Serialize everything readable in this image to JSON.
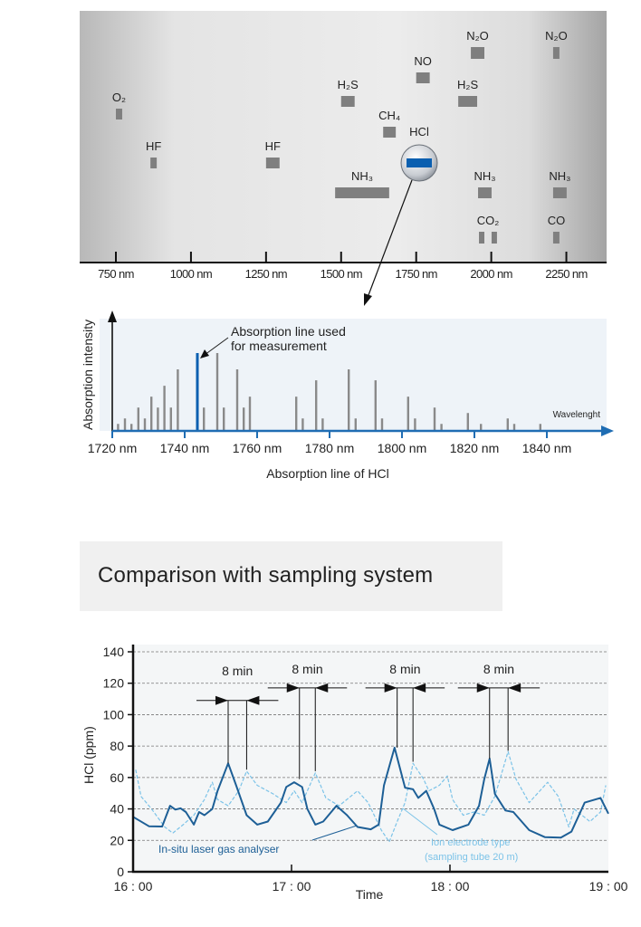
{
  "chart_data": [
    {
      "type": "range-bars",
      "xlabel": "",
      "x_unit": "nm",
      "xlim": [
        630,
        2390
      ],
      "x_ticks": [
        "750 nm",
        "1000 nm",
        "1250 nm",
        "1500 nm",
        "1750 nm",
        "2000 nm",
        "2250 nm"
      ],
      "x_tick_values": [
        750,
        1000,
        1250,
        1500,
        1750,
        2000,
        2250
      ],
      "grid": false,
      "species": [
        {
          "label": "O₂",
          "ranges": [
            [
              750,
              771
            ]
          ]
        },
        {
          "label": "HF",
          "ranges": [
            [
              865,
              886
            ]
          ]
        },
        {
          "label": "HF",
          "ranges": [
            [
              1250,
              1295
            ]
          ]
        },
        {
          "label": "H₂S",
          "ranges": [
            [
              1500,
              1545
            ]
          ]
        },
        {
          "label": "NO",
          "ranges": [
            [
              1750,
              1795
            ]
          ]
        },
        {
          "label": "N₂O",
          "ranges": [
            [
              1932,
              1977
            ]
          ]
        },
        {
          "label": "N₂O",
          "ranges": [
            [
              2206,
              2227
            ]
          ]
        },
        {
          "label": "H₂S",
          "ranges": [
            [
              1890,
              1953
            ]
          ]
        },
        {
          "label": "CH₄",
          "ranges": [
            [
              1640,
              1682
            ]
          ]
        },
        {
          "label": "HCl",
          "ranges": [
            [
              1740,
              1780
            ]
          ],
          "highlight": true
        },
        {
          "label": "NH₃",
          "ranges": [
            [
              1480,
              1660
            ]
          ]
        },
        {
          "label": "NH₃",
          "ranges": [
            [
              1956,
              2001
            ]
          ]
        },
        {
          "label": "NH₃",
          "ranges": [
            [
              2206,
              2251
            ]
          ]
        },
        {
          "label": "CO₂",
          "ranges": [
            [
              1959,
              1977
            ],
            [
              2001,
              2019
            ]
          ]
        },
        {
          "label": "CO",
          "ranges": [
            [
              2206,
              2227
            ]
          ]
        }
      ],
      "colors": {
        "bar": "#7f7f7f",
        "highlight": "#0a5fb0"
      }
    },
    {
      "type": "bar",
      "title": "Absorption line of HCl",
      "xlabel": "Wavelenght",
      "ylabel": "Absorption intensity",
      "xlim": [
        1720,
        1856
      ],
      "x_ticks": [
        "1720 nm",
        "1740 nm",
        "1760 nm",
        "1780 nm",
        "1800 nm",
        "1820 nm",
        "1840 nm"
      ],
      "x_tick_values": [
        1720,
        1740,
        1760,
        1780,
        1800,
        1820,
        1840
      ],
      "annotation": [
        "Absorption line used",
        "for measurement"
      ],
      "highlight_line_nm": 1743.5,
      "lines": [
        [
          1721.6,
          0.09
        ],
        [
          1723.5,
          0.16
        ],
        [
          1725.3,
          0.09
        ],
        [
          1727.2,
          0.3
        ],
        [
          1729.0,
          0.16
        ],
        [
          1730.8,
          0.44
        ],
        [
          1732.6,
          0.3
        ],
        [
          1734.4,
          0.58
        ],
        [
          1736.2,
          0.3
        ],
        [
          1738.1,
          0.79
        ],
        [
          1743.5,
          1.0
        ],
        [
          1745.3,
          0.3
        ],
        [
          1749.0,
          1.0
        ],
        [
          1750.8,
          0.3
        ],
        [
          1754.5,
          0.79
        ],
        [
          1756.3,
          0.3
        ],
        [
          1758.0,
          0.44
        ],
        [
          1770.8,
          0.44
        ],
        [
          1772.6,
          0.16
        ],
        [
          1776.3,
          0.65
        ],
        [
          1778.1,
          0.16
        ],
        [
          1785.3,
          0.79
        ],
        [
          1787.2,
          0.16
        ],
        [
          1792.7,
          0.65
        ],
        [
          1794.5,
          0.16
        ],
        [
          1801.7,
          0.44
        ],
        [
          1803.6,
          0.16
        ],
        [
          1809.0,
          0.3
        ],
        [
          1810.9,
          0.09
        ],
        [
          1818.2,
          0.23
        ],
        [
          1821.8,
          0.09
        ],
        [
          1829.2,
          0.16
        ],
        [
          1831.0,
          0.09
        ],
        [
          1838.2,
          0.09
        ]
      ],
      "colors": {
        "line": "#8a8a8a",
        "highlight": "#0a5fb0",
        "axis": "#1f6db3",
        "background": "#eef3f8"
      }
    },
    {
      "type": "line",
      "title": "Comparison with sampling system",
      "xlabel": "Time",
      "ylabel": "HCl (ppm)",
      "ylim": [
        0,
        140
      ],
      "y_ticks": [
        0,
        20,
        40,
        60,
        80,
        100,
        120,
        140
      ],
      "xlim": [
        "16:00",
        "19:00"
      ],
      "x_ticks": [
        "16 : 00",
        "17 : 00",
        "18 : 00",
        "19 : 00"
      ],
      "grid": "horizontal dashed",
      "series": [
        {
          "name": "In-situ laser gas analyser",
          "color": "#1d5f96",
          "style": "solid",
          "points": [
            [
              "16:00",
              35
            ],
            [
              "16:06",
              29
            ],
            [
              "16:11",
              28.8
            ],
            [
              "16:14",
              42
            ],
            [
              "16:16",
              39.6
            ],
            [
              "16:18",
              40.4
            ],
            [
              "16:20",
              38
            ],
            [
              "16:23",
              30
            ],
            [
              "16:25",
              38
            ],
            [
              "16:27",
              36
            ],
            [
              "16:30",
              40
            ],
            [
              "16:32",
              51.5
            ],
            [
              "16:36",
              69
            ],
            [
              "16:39",
              55
            ],
            [
              "16:43",
              36
            ],
            [
              "16:47",
              30
            ],
            [
              "16:51",
              32
            ],
            [
              "16:56",
              44
            ],
            [
              "16:58",
              54
            ],
            [
              "17:01",
              57
            ],
            [
              "17:04",
              54
            ],
            [
              "17:06",
              40
            ],
            [
              "17:09",
              30
            ],
            [
              "17:12",
              32
            ],
            [
              "17:17",
              42
            ],
            [
              "17:21",
              36
            ],
            [
              "17:25",
              28.5
            ],
            [
              "17:30",
              27
            ],
            [
              "17:33",
              30
            ],
            [
              "17:35",
              55
            ],
            [
              "17:39",
              79
            ],
            [
              "17:43",
              53.5
            ],
            [
              "17:46",
              52.5
            ],
            [
              "17:48",
              47
            ],
            [
              "17:51",
              51.5
            ],
            [
              "17:54",
              40
            ],
            [
              "17:56",
              30
            ],
            [
              "18:01",
              26.5
            ],
            [
              "18:07",
              30
            ],
            [
              "18:11",
              42
            ],
            [
              "18:13",
              59
            ],
            [
              "18:15",
              72
            ],
            [
              "18:17",
              49.6
            ],
            [
              "18:21",
              39
            ],
            [
              "18:24",
              38
            ],
            [
              "18:30",
              26.5
            ],
            [
              "18:36",
              22
            ],
            [
              "18:42",
              21.7
            ],
            [
              "18:46",
              25.6
            ],
            [
              "18:51",
              44
            ],
            [
              "18:57",
              47
            ],
            [
              "19:00",
              37
            ]
          ]
        },
        {
          "name": "Ion electrode type (sampling tube 20 m)",
          "name_lines": [
            "Ion electrode type",
            "(sampling tube 20 m)"
          ],
          "color": "#7cc3e8",
          "style": "dashed",
          "points": [
            [
              "16:01",
              65
            ],
            [
              "16:03",
              48
            ],
            [
              "16:07",
              40
            ],
            [
              "16:12",
              28.5
            ],
            [
              "16:15",
              24.6
            ],
            [
              "16:19",
              30
            ],
            [
              "16:23",
              36
            ],
            [
              "16:27",
              46
            ],
            [
              "16:30",
              57
            ],
            [
              "16:32",
              46
            ],
            [
              "16:36",
              42
            ],
            [
              "16:40",
              51.5
            ],
            [
              "16:43",
              64
            ],
            [
              "16:47",
              55
            ],
            [
              "16:53",
              49.6
            ],
            [
              "16:58",
              44
            ],
            [
              "17:01",
              51.5
            ],
            [
              "17:04",
              44
            ],
            [
              "17:09",
              63
            ],
            [
              "17:13",
              47
            ],
            [
              "17:18",
              42
            ],
            [
              "17:25",
              51.5
            ],
            [
              "17:29",
              44
            ],
            [
              "17:34",
              26.5
            ],
            [
              "17:37",
              19
            ],
            [
              "17:40",
              32
            ],
            [
              "17:43",
              44
            ],
            [
              "17:46",
              69
            ],
            [
              "17:50",
              59
            ],
            [
              "17:52",
              51.5
            ],
            [
              "17:56",
              55
            ],
            [
              "17:59",
              61
            ],
            [
              "18:01",
              46
            ],
            [
              "18:05",
              36
            ],
            [
              "18:09",
              38
            ],
            [
              "18:13",
              36
            ],
            [
              "18:17",
              48
            ],
            [
              "18:22",
              76.5
            ],
            [
              "18:25",
              59
            ],
            [
              "18:30",
              44
            ],
            [
              "18:37",
              57
            ],
            [
              "18:41",
              48
            ],
            [
              "18:45",
              28.5
            ],
            [
              "18:47",
              40
            ],
            [
              "18:53",
              32
            ],
            [
              "18:57",
              38
            ],
            [
              "18:59",
              55
            ]
          ]
        }
      ],
      "annotations": [
        {
          "label": "8 min",
          "from": "16:36",
          "to": "16:43",
          "from_ppm": 69,
          "to_ppm": 65,
          "arrow_ppm": 109
        },
        {
          "label": "8 min",
          "from": "17:03",
          "to": "17:09",
          "from_ppm": 59,
          "to_ppm": 64,
          "arrow_ppm": 117
        },
        {
          "label": "8 min",
          "from": "17:40",
          "to": "17:46",
          "from_ppm": 79,
          "to_ppm": 70,
          "arrow_ppm": 117
        },
        {
          "label": "8 min",
          "from": "18:15",
          "to": "18:22",
          "from_ppm": 72,
          "to_ppm": 77,
          "arrow_ppm": 117
        }
      ]
    }
  ],
  "section_title": "Comparison with sampling system"
}
